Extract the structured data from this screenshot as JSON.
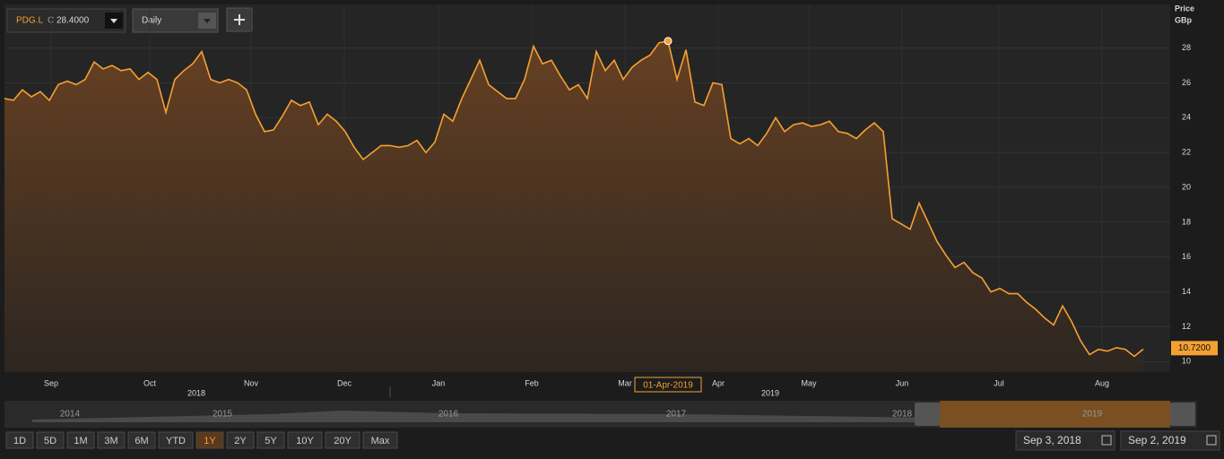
{
  "toolbar": {
    "symbol": "PDG.L",
    "close_prefix": "C",
    "close": "28.4000",
    "interval": "Daily"
  },
  "chart_data": {
    "type": "area",
    "y_label": "Price",
    "y_unit": "GBp",
    "color": "#f5a033",
    "values": [
      25.1,
      25.0,
      25.6,
      25.2,
      25.5,
      25.0,
      25.9,
      26.1,
      25.9,
      26.2,
      27.2,
      26.8,
      27.0,
      26.7,
      26.8,
      26.2,
      26.6,
      26.2,
      24.3,
      26.2,
      26.7,
      27.1,
      27.8,
      26.2,
      26.0,
      26.2,
      26.0,
      25.6,
      24.2,
      23.2,
      23.3,
      24.1,
      25.0,
      24.7,
      24.9,
      23.6,
      24.2,
      23.8,
      23.2,
      22.3,
      21.6,
      22.0,
      22.4,
      22.4,
      22.3,
      22.4,
      22.7,
      22.0,
      22.6,
      24.2,
      23.8,
      25.1,
      26.2,
      27.3,
      25.9,
      25.5,
      25.1,
      25.1,
      26.2,
      28.1,
      27.1,
      27.3,
      26.4,
      25.6,
      25.9,
      25.1,
      27.8,
      26.7,
      27.3,
      26.2,
      26.9,
      27.3,
      27.6,
      28.3,
      28.4,
      26.2,
      27.9,
      24.9,
      24.7,
      26.0,
      25.9,
      22.8,
      22.5,
      22.8,
      22.4,
      23.1,
      24.0,
      23.2,
      23.6,
      23.7,
      23.5,
      23.6,
      23.8,
      23.2,
      23.1,
      22.8,
      23.3,
      23.7,
      23.2,
      18.2,
      17.9,
      17.6,
      19.1,
      18.0,
      16.9,
      16.1,
      15.4,
      15.7,
      15.1,
      14.8,
      14.0,
      14.2,
      13.9,
      13.9,
      13.4,
      13.0,
      12.5,
      12.1,
      13.2,
      12.3,
      11.2,
      10.4,
      10.7,
      10.6,
      10.8,
      10.7,
      10.3,
      10.72
    ],
    "xlim": [
      0,
      130
    ],
    "ylim": [
      9.4,
      30.5
    ],
    "yticks": [
      10,
      12,
      14,
      16,
      18,
      20,
      22,
      24,
      26,
      28
    ],
    "xticks": [
      {
        "value": 5.2,
        "label": "Sep"
      },
      {
        "value": 16.2,
        "label": "Oct"
      },
      {
        "value": 27.5,
        "label": "Nov"
      },
      {
        "value": 37.9,
        "label": "Dec"
      },
      {
        "value": 48.4,
        "label": "Jan"
      },
      {
        "value": 58.8,
        "label": "Feb"
      },
      {
        "value": 69.2,
        "label": "Mar"
      },
      {
        "value": 79.6,
        "label": "Apr"
      },
      {
        "value": 89.7,
        "label": "May"
      },
      {
        "value": 100.1,
        "label": "Jun"
      },
      {
        "value": 110.9,
        "label": "Jul"
      },
      {
        "value": 122.4,
        "label": "Aug"
      }
    ],
    "year_ticks": [
      {
        "value": 21.4,
        "label": "2018"
      },
      {
        "value": 85.4,
        "label": "2019"
      }
    ],
    "grid": true,
    "last_label": {
      "value": 10.72,
      "label": "10.7200"
    },
    "hover": {
      "x": 74,
      "label": "01-Apr-2019"
    }
  },
  "navigator": {
    "years": [
      "2014",
      "2015",
      "2016",
      "2017",
      "2018",
      "2019"
    ]
  },
  "range_buttons": [
    {
      "label": "1D"
    },
    {
      "label": "5D"
    },
    {
      "label": "1M"
    },
    {
      "label": "3M"
    },
    {
      "label": "6M"
    },
    {
      "label": "YTD"
    },
    {
      "label": "1Y",
      "active": true
    },
    {
      "label": "2Y"
    },
    {
      "label": "5Y"
    },
    {
      "label": "10Y"
    },
    {
      "label": "20Y"
    },
    {
      "label": "Max"
    }
  ],
  "date_from": "Sep 3, 2018",
  "date_to": "Sep 2, 2019"
}
